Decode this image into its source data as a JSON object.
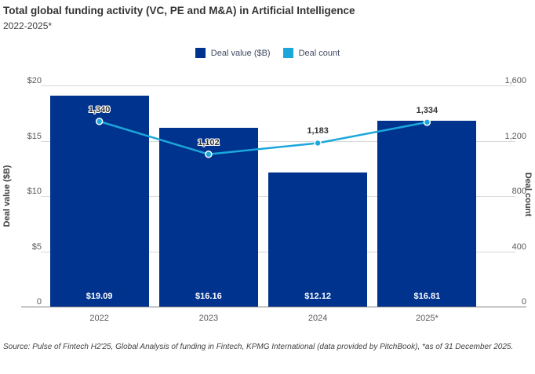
{
  "header": {
    "title": "Total global funding activity (VC, PE and M&A) in Artificial Intelligence",
    "subtitle": "2022-2025*"
  },
  "legend": {
    "items": [
      {
        "label": "Deal value ($B)",
        "color": "#00338D"
      },
      {
        "label": "Deal count",
        "color": "#1CA7DC"
      }
    ]
  },
  "axes": {
    "left": {
      "title": "Deal value ($B)",
      "ticks": [
        "$20",
        "$15",
        "$10",
        "$5",
        "0"
      ]
    },
    "right": {
      "title": "Deal count",
      "ticks": [
        "1,600",
        "1,200",
        "800",
        "400",
        "0"
      ]
    }
  },
  "source": "Source: Pulse of Fintech H2'25, Global Analysis of funding in Fintech, KPMG International (data provided by PitchBook), *as of 31 December 2025.",
  "chart_data": {
    "type": "combo",
    "categories": [
      "2022",
      "2023",
      "2024",
      "2025*"
    ],
    "series": [
      {
        "name": "Deal value ($B)",
        "type": "bar",
        "axis": "left",
        "values": [
          19.09,
          16.16,
          12.12,
          16.81
        ],
        "labels": [
          "$19.09",
          "$16.16",
          "$12.12",
          "$16.81"
        ],
        "color": "#00338D"
      },
      {
        "name": "Deal count",
        "type": "line",
        "axis": "right",
        "values": [
          1340,
          1102,
          1183,
          1334
        ],
        "labels": [
          "1,340",
          "1,102",
          "1,183",
          "1,334"
        ],
        "color": "#1CA7DC"
      }
    ],
    "left_axis": {
      "label": "Deal value ($B)",
      "min": 0,
      "max": 20,
      "tick_step": 5
    },
    "right_axis": {
      "label": "Deal count",
      "min": 0,
      "max": 1600,
      "tick_step": 400
    },
    "grid": true,
    "legend_position": "top"
  }
}
